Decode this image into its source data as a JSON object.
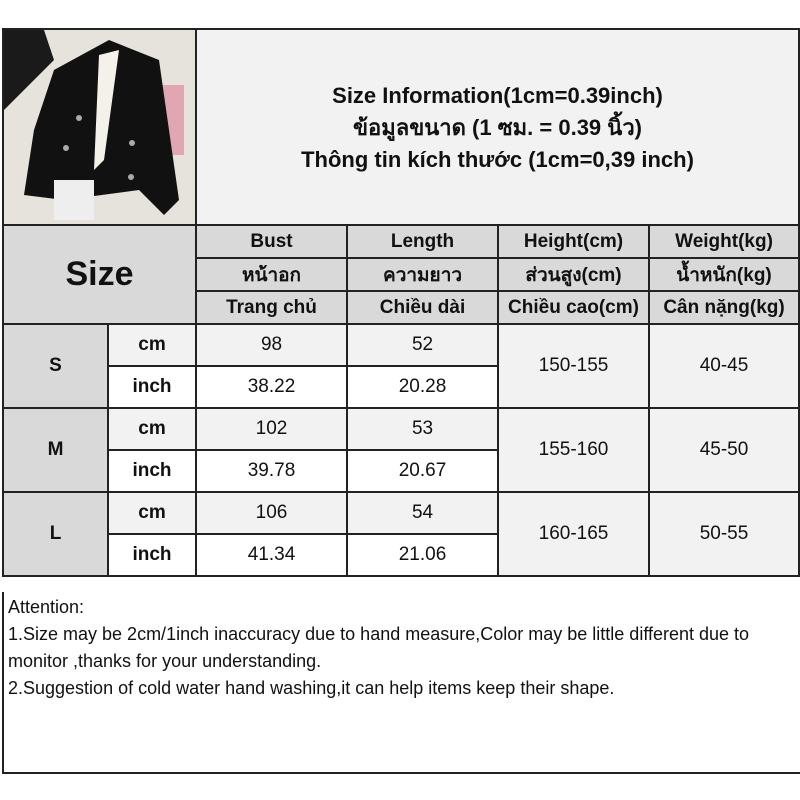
{
  "header": {
    "title_lines": [
      "Size Information(1cm=0.39inch)",
      "ข้อมูลขนาด (1 ซม. = 0.39 นิ้ว)",
      "Thông tin kích thước (1cm=0,39 inch)"
    ],
    "product_image": "black cropped double-breasted blazer"
  },
  "table": {
    "size_label": "Size",
    "columns": [
      {
        "en": "Bust",
        "th": "หน้าอก",
        "vi": "Trang chủ"
      },
      {
        "en": "Length",
        "th": "ความยาว",
        "vi": "Chiều dài"
      },
      {
        "en": "Height(cm)",
        "th": "ส่วนสูง(cm)",
        "vi": "Chiều cao(cm)"
      },
      {
        "en": "Weight(kg)",
        "th": "น้ำหนัก(kg)",
        "vi": "Cân nặng(kg)"
      }
    ],
    "unit_cm": "cm",
    "unit_inch": "inch",
    "rows": [
      {
        "size": "S",
        "bust_cm": "98",
        "length_cm": "52",
        "bust_inch": "38.22",
        "length_inch": "20.28",
        "height": "150-155",
        "weight": "40-45"
      },
      {
        "size": "M",
        "bust_cm": "102",
        "length_cm": "53",
        "bust_inch": "39.78",
        "length_inch": "20.67",
        "height": "155-160",
        "weight": "45-50"
      },
      {
        "size": "L",
        "bust_cm": "106",
        "length_cm": "54",
        "bust_inch": "41.34",
        "length_inch": "21.06",
        "height": "160-165",
        "weight": "50-55"
      }
    ]
  },
  "attention": {
    "title": "Attention:",
    "items": [
      "1.Size may be 2cm/1inch inaccuracy due to hand measure,Color may be little different due to monitor ,thanks for your understanding.",
      "2.Suggestion of cold water hand washing,it can help items keep their shape."
    ]
  }
}
